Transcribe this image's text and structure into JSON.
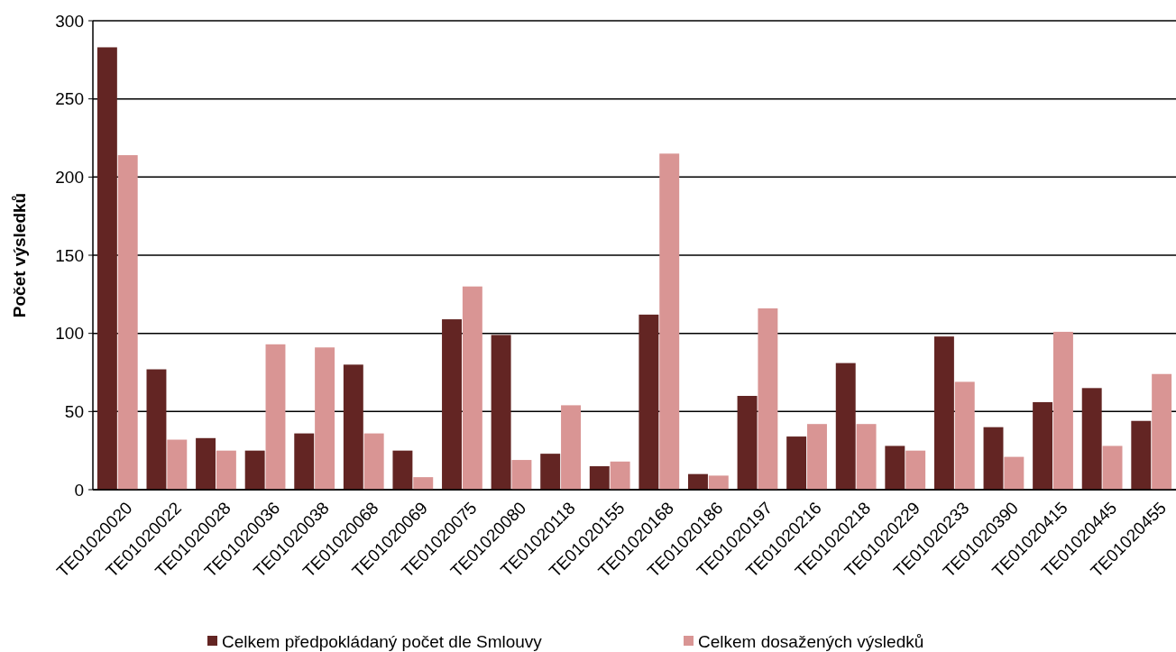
{
  "chart_data": {
    "type": "bar",
    "ylabel": "Počet výsledků",
    "categories": [
      "TE01020020",
      "TE01020022",
      "TE01020028",
      "TE01020036",
      "TE01020038",
      "TE01020068",
      "TE01020069",
      "TE01020075",
      "TE01020080",
      "TE01020118",
      "TE01020155",
      "TE01020168",
      "TE01020186",
      "TE01020197",
      "TE01020216",
      "TE01020218",
      "TE01020229",
      "TE01020233",
      "TE01020390",
      "TE01020415",
      "TE01020445",
      "TE01020455"
    ],
    "series": [
      {
        "name": "Celkem předpokládaný počet dle Smlouvy",
        "color": "#632523",
        "values": [
          283,
          77,
          33,
          25,
          36,
          80,
          25,
          109,
          99,
          23,
          15,
          112,
          10,
          60,
          34,
          81,
          28,
          98,
          40,
          56,
          65,
          44
        ]
      },
      {
        "name": "Celkem dosažených výsledků",
        "color": "#d99594",
        "values": [
          214,
          32,
          25,
          93,
          91,
          36,
          8,
          130,
          19,
          54,
          18,
          215,
          9,
          116,
          42,
          42,
          25,
          69,
          21,
          101,
          28,
          74
        ]
      }
    ],
    "ylim": [
      0,
      300
    ],
    "yticks": [
      0,
      50,
      100,
      150,
      200,
      250,
      300
    ],
    "grid": "y",
    "legend": "bottom"
  }
}
